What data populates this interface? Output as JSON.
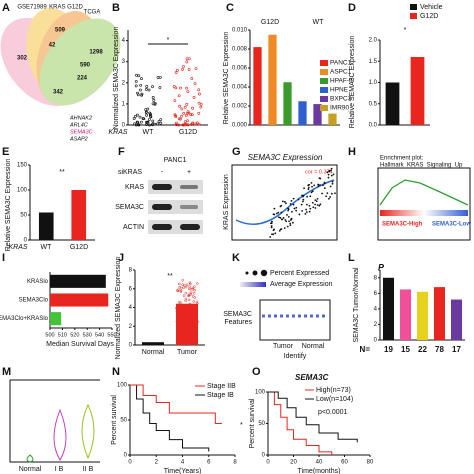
{
  "venn": {
    "letter": "A",
    "labels": [
      "GSE71989",
      "KRAS G12D",
      "TCGA"
    ],
    "counts": [
      509,
      42,
      302,
      590,
      224,
      342,
      1298
    ],
    "genes": [
      "AHNAK2",
      "ARL4C",
      "SEMA3C",
      "ASAP2"
    ]
  },
  "b": {
    "letter": "B",
    "ylabel": "Normalized SEMA3C Expression",
    "xlabel": "KRAS",
    "categories": [
      "WT",
      "G12D"
    ],
    "sig": "*",
    "ylim": [
      0,
      4.5
    ],
    "yticks": [
      0,
      1,
      2,
      3,
      4
    ]
  },
  "c": {
    "letter": "C",
    "ylabel": "Relative SEMA3C Expression",
    "groups": [
      "G12D",
      "WT"
    ],
    "categories": [
      "PANC1",
      "ASPC1",
      "HPAF-II",
      "HPNE",
      "BXPC3",
      "IMR90"
    ],
    "values": [
      0.0082,
      0.0095,
      0.0045,
      0.0025,
      0.0022,
      0.0012
    ],
    "colors": [
      "#e8261f",
      "#f08a24",
      "#3a9a2a",
      "#2f5fd0",
      "#6a3aa0",
      "#c8a020"
    ],
    "ylim": [
      0,
      0.01
    ],
    "yticks": [
      {
        "value": 0,
        "label": "0.000"
      },
      {
        "value": 0.002,
        "label": "0.002"
      },
      {
        "value": 0.004,
        "label": "0.004"
      },
      {
        "value": 0.006,
        "label": "0.006"
      },
      {
        "value": 0.008,
        "label": "0.008"
      },
      {
        "value": 0.01,
        "label": "0.010"
      }
    ]
  },
  "d": {
    "letter": "D",
    "ylabel": "Relative SEMA3C Expression",
    "categories": [
      "Vehicle",
      "G12D"
    ],
    "values": [
      1.0,
      1.6
    ],
    "colors": [
      "#111111",
      "#e8261f"
    ],
    "sig": "*",
    "ylim": [
      0,
      2
    ],
    "yticks": [
      {
        "value": 0,
        "label": "0.0"
      },
      {
        "value": 0.5,
        "label": "0.5"
      },
      {
        "value": 1,
        "label": "1.0"
      },
      {
        "value": 1.5,
        "label": "1.5"
      },
      {
        "value": 2,
        "label": "2.0"
      }
    ]
  },
  "e": {
    "letter": "E",
    "ylabel": "Relative SEMA3C Expression",
    "xlabel": "KRAS",
    "categories": [
      "WT",
      "G12D"
    ],
    "values": [
      55,
      100
    ],
    "colors": [
      "#111111",
      "#e8261f"
    ],
    "sig": "**",
    "ylim": [
      0,
      150
    ],
    "yticks": [
      0,
      50,
      100,
      150
    ]
  },
  "f": {
    "letter": "F",
    "cell": "PANC1",
    "treatment": "siKRAS",
    "lanes": [
      "-",
      "+"
    ],
    "rows": [
      "KRAS",
      "SEMA3C",
      "ACTIN"
    ]
  },
  "g": {
    "letter": "G",
    "title": "SEMA3C Expression",
    "ylabel": "KRAS Expression",
    "cor": "cor = 0.374"
  },
  "h": {
    "letter": "H",
    "title": "Enrichment plot:",
    "subtitle": "Hallmark_KRAS_Signaling_Up",
    "high": "SEMA3C-High",
    "low": "SEMA3C-Low"
  },
  "i": {
    "letter": "I",
    "categories": [
      "KRASlo",
      "SEMA3Clo",
      "SEMA3Clo+KRASlo"
    ],
    "values": [
      545,
      547,
      509
    ],
    "colors": [
      "#111111",
      "#e8261f",
      "#44c33a"
    ],
    "xlim": [
      500,
      550
    ],
    "xticks": [
      500,
      510,
      520,
      530,
      540,
      550
    ],
    "xlabel": "Median Survival Days"
  },
  "j": {
    "letter": "J",
    "ylabel": "Normalized SEMA3C Expression",
    "categories": [
      "Normal",
      "Tumor"
    ],
    "sig": "**",
    "ylim": [
      0,
      8
    ],
    "yticks": [
      0,
      2,
      4,
      6,
      8
    ]
  },
  "k": {
    "letter": "K",
    "legend": [
      "Percent Expressed",
      "Average Expression"
    ],
    "feature": "SEMA3C",
    "ylabel": "Features",
    "categories": [
      "Tumor",
      "Normal"
    ],
    "xlabel": "Identify"
  },
  "l": {
    "letter": "L",
    "p": "P",
    "ylabel": "SEMA3C Tumor/Normal",
    "nlabel": "N=",
    "categories": [
      "19",
      "15",
      "22",
      "78",
      "17"
    ],
    "values": [
      8,
      6.5,
      6.2,
      6.8,
      5.2
    ],
    "colors": [
      "#111111",
      "#f0509a",
      "#e6d21e",
      "#e8261f",
      "#6a3aa0"
    ],
    "ylim": [
      0,
      9
    ],
    "yticks": [
      0,
      2,
      4,
      6,
      8
    ]
  },
  "m": {
    "letter": "M",
    "categories": [
      "Normal",
      "I B",
      "II B"
    ]
  },
  "n": {
    "letter": "N",
    "legend": [
      "Stage IIB",
      "Stage IB"
    ],
    "ylabel": "Percent survival",
    "xlabel": "Time(Years)",
    "sig": "*",
    "xlim": [
      0,
      8
    ],
    "xticks": [
      0,
      2,
      4,
      6,
      8
    ],
    "ylim": [
      0,
      100
    ],
    "yticks": [
      0,
      50,
      100
    ]
  },
  "o": {
    "letter": "O",
    "title": "SEMA3C",
    "legend": [
      "High(n=73)",
      "Low(n=104)"
    ],
    "pvalue": "p<0.0001",
    "ylabel": "Percent survival",
    "xlabel": "Time(months)",
    "xlim": [
      0,
      80
    ],
    "xticks": [
      0,
      20,
      40,
      60,
      80
    ],
    "ylim": [
      0,
      100
    ],
    "yticks": [
      0,
      50,
      100
    ]
  }
}
